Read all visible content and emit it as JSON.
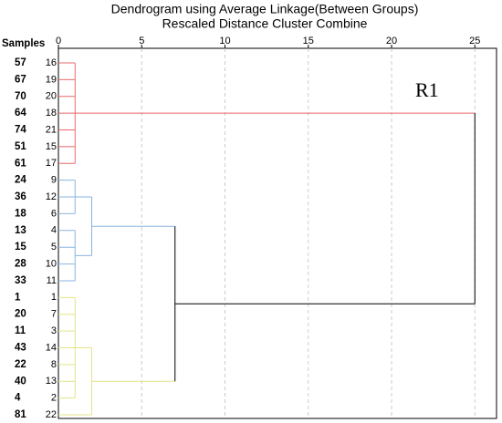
{
  "chart_data": {
    "type": "dendrogram",
    "title": [
      "Dendrogram using Average Linkage(Between Groups)",
      "Rescaled Distance Cluster Combine"
    ],
    "leaf_header": "Samples",
    "leaves": [
      {
        "sample": "57",
        "case": "16"
      },
      {
        "sample": "67",
        "case": "19"
      },
      {
        "sample": "70",
        "case": "20"
      },
      {
        "sample": "64",
        "case": "18"
      },
      {
        "sample": "74",
        "case": "21"
      },
      {
        "sample": "51",
        "case": "15"
      },
      {
        "sample": "61",
        "case": "17"
      },
      {
        "sample": "24",
        "case": "9"
      },
      {
        "sample": "36",
        "case": "12"
      },
      {
        "sample": "18",
        "case": "6"
      },
      {
        "sample": "13",
        "case": "4"
      },
      {
        "sample": "15",
        "case": "5"
      },
      {
        "sample": "28",
        "case": "10"
      },
      {
        "sample": "33",
        "case": "11"
      },
      {
        "sample": "1",
        "case": "1"
      },
      {
        "sample": "20",
        "case": "7"
      },
      {
        "sample": "11",
        "case": "3"
      },
      {
        "sample": "43",
        "case": "14"
      },
      {
        "sample": "22",
        "case": "8"
      },
      {
        "sample": "40",
        "case": "13"
      },
      {
        "sample": "4",
        "case": "2"
      },
      {
        "sample": "81",
        "case": "22"
      }
    ],
    "merges": [
      {
        "children": [
          0,
          1,
          2,
          3,
          4,
          5,
          6
        ],
        "height": 1,
        "color": "#e8696b"
      },
      {
        "children": [
          7,
          8,
          9
        ],
        "height": 1,
        "color": "#8ab4e0"
      },
      {
        "children": [
          10,
          11,
          12,
          13
        ],
        "height": 1,
        "color": "#8ab4e0"
      },
      {
        "children": [
          23,
          24
        ],
        "height": 2,
        "color": "#8ab4e0"
      },
      {
        "children": [
          14,
          15,
          16,
          17,
          18,
          19,
          20
        ],
        "height": 1,
        "color": "#e3e38a"
      },
      {
        "children": [
          26,
          21
        ],
        "height": 2,
        "color": "#e3e38a"
      },
      {
        "children": [
          25,
          27
        ],
        "height": 7,
        "color": "#000000"
      },
      {
        "children": [
          22,
          28
        ],
        "height": 25,
        "color": "#000000"
      }
    ],
    "xlim": [
      0,
      26.3
    ],
    "xticks": [
      0,
      5,
      10,
      15,
      20,
      25
    ],
    "grid": true,
    "annotation": "R1"
  }
}
